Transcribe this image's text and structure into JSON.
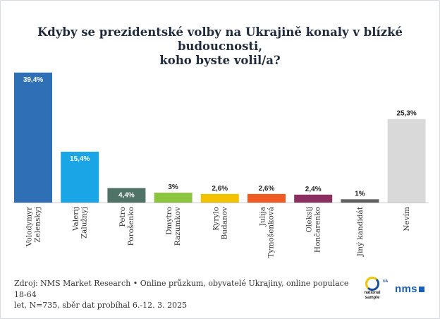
{
  "title_line1": "Kdyby se prezidentské volby na Ukrajině konaly v blízké budoucnosti,",
  "title_line2": "koho byste volil/a?",
  "source_line1": "Zdroj: NMS Market Research • Online průzkum, obyvatelé Ukrajiny, online populace 18-64",
  "source_line2": "let, N=735, sběr dat probíhal 6.-12. 3. 2025",
  "logos": {
    "national_sample_line1": "national",
    "national_sample_line2": "sample",
    "national_sample_ua": "UA",
    "nms": "nms"
  },
  "chart_data": {
    "type": "bar",
    "title": "Kdyby se prezidentské volby na Ukrajině konaly v blízké budoucnosti, koho byste volil/a?",
    "categories": [
      [
        "Volodymyr",
        "Zelenskyj"
      ],
      [
        "Valerij",
        "Zalužnyj"
      ],
      [
        "Petro",
        "Porošenko"
      ],
      [
        "Dmytro",
        "Razumkov"
      ],
      [
        "Kyrylo",
        "Budanov"
      ],
      [
        "Julija",
        "Tymošenková"
      ],
      [
        "Oleksij",
        "Hončarenko"
      ],
      [
        "Jiný kandidát"
      ],
      [
        "Nevím"
      ]
    ],
    "values": [
      39.4,
      15.4,
      4.4,
      3,
      2.6,
      2.6,
      2.4,
      1,
      25.3
    ],
    "labels": [
      "39,4%",
      "15,4%",
      "4,4%",
      "3%",
      "2,6%",
      "2,6%",
      "2,4%",
      "1%",
      "25,3%"
    ],
    "colors": [
      "#2e6fb6",
      "#1aa6e6",
      "#4f7366",
      "#8cc63f",
      "#f2c200",
      "#f05a23",
      "#8b2f62",
      "#606060",
      "#d9d9d9"
    ],
    "label_inside": [
      true,
      true,
      true,
      false,
      false,
      false,
      false,
      false,
      false
    ],
    "ylim": [
      0,
      40
    ],
    "xlabel": "",
    "ylabel": "",
    "grid": false,
    "legend": "none"
  }
}
